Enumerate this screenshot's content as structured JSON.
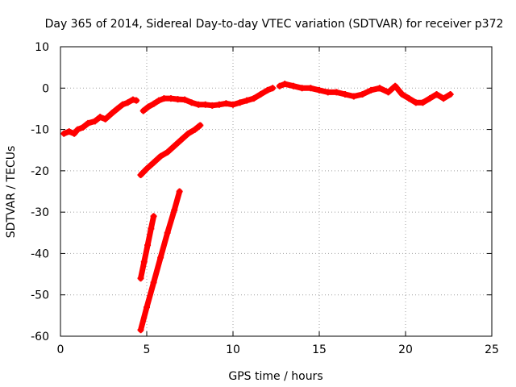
{
  "chart_data": {
    "type": "scatter",
    "title": "Day 365 of 2014, Sidereal Day-to-day VTEC variation (SDTVAR) for receiver p372",
    "xlabel": "GPS time / hours",
    "ylabel": "SDTVAR / TECUs",
    "xlim": [
      0,
      25
    ],
    "ylim": [
      -60,
      10
    ],
    "xticks": [
      0,
      5,
      10,
      15,
      20,
      25
    ],
    "yticks": [
      10,
      0,
      -10,
      -20,
      -30,
      -40,
      -50,
      -60
    ],
    "xtick_labels": [
      "0",
      "5",
      "10",
      "15",
      "20",
      "25"
    ],
    "ytick_labels": [
      "10",
      "0",
      "-10",
      "-20",
      "-30",
      "-40",
      "-50",
      "-60"
    ],
    "grid": true,
    "series_color": "#ff0000",
    "series": [
      {
        "x": [
          0.2,
          0.5,
          0.8,
          1.0,
          1.3,
          1.6,
          2.0,
          2.3,
          2.6,
          3.0,
          3.3,
          3.6,
          3.9,
          4.2,
          4.4
        ],
        "y": [
          -11,
          -10.5,
          -11,
          -10,
          -9.5,
          -8.5,
          -8,
          -7,
          -7.5,
          -6,
          -5,
          -4,
          -3.5,
          -2.8,
          -3
        ]
      },
      {
        "x": [
          4.8,
          5.1,
          5.4,
          5.7,
          6.0,
          6.4,
          6.8,
          7.2,
          7.6,
          8.0,
          8.4,
          8.8,
          9.2,
          9.6,
          10.0,
          10.4,
          10.8,
          11.2,
          11.6,
          12.0,
          12.3
        ],
        "y": [
          -5.5,
          -4.5,
          -3.8,
          -3,
          -2.5,
          -2.5,
          -2.7,
          -2.8,
          -3.5,
          -4,
          -4,
          -4.2,
          -4,
          -3.7,
          -4,
          -3.5,
          -3,
          -2.5,
          -1.5,
          -0.5,
          0
        ]
      },
      {
        "x": [
          12.7,
          13.0,
          13.5,
          14.0,
          14.5,
          15.0,
          15.5,
          16.0,
          16.5,
          17.0,
          17.5,
          18.0,
          18.5,
          19.0,
          19.4,
          19.8,
          20.2,
          20.6,
          21.0,
          21.4,
          21.8,
          22.2,
          22.6
        ],
        "y": [
          0.5,
          1,
          0.5,
          0,
          0,
          -0.5,
          -1,
          -1,
          -1.5,
          -2,
          -1.5,
          -0.5,
          0,
          -1,
          0.5,
          -1.5,
          -2.5,
          -3.5,
          -3.5,
          -2.5,
          -1.5,
          -2.5,
          -1.5
        ]
      },
      {
        "x": [
          4.65,
          5.0,
          5.4,
          5.8,
          6.2,
          6.6,
          7.0,
          7.4,
          7.8,
          8.1
        ],
        "y": [
          -21,
          -19.5,
          -18,
          -16.5,
          -15.5,
          -14,
          -12.5,
          -11,
          -10,
          -9
        ]
      },
      {
        "x": [
          4.65,
          4.85,
          5.05,
          5.25,
          5.4
        ],
        "y": [
          -46,
          -42,
          -38,
          -34,
          -31
        ]
      },
      {
        "x": [
          4.65,
          5.0,
          5.4,
          5.8,
          6.2,
          6.6,
          6.9
        ],
        "y": [
          -58.5,
          -53,
          -47,
          -41,
          -35,
          -29.5,
          -25
        ]
      }
    ]
  }
}
